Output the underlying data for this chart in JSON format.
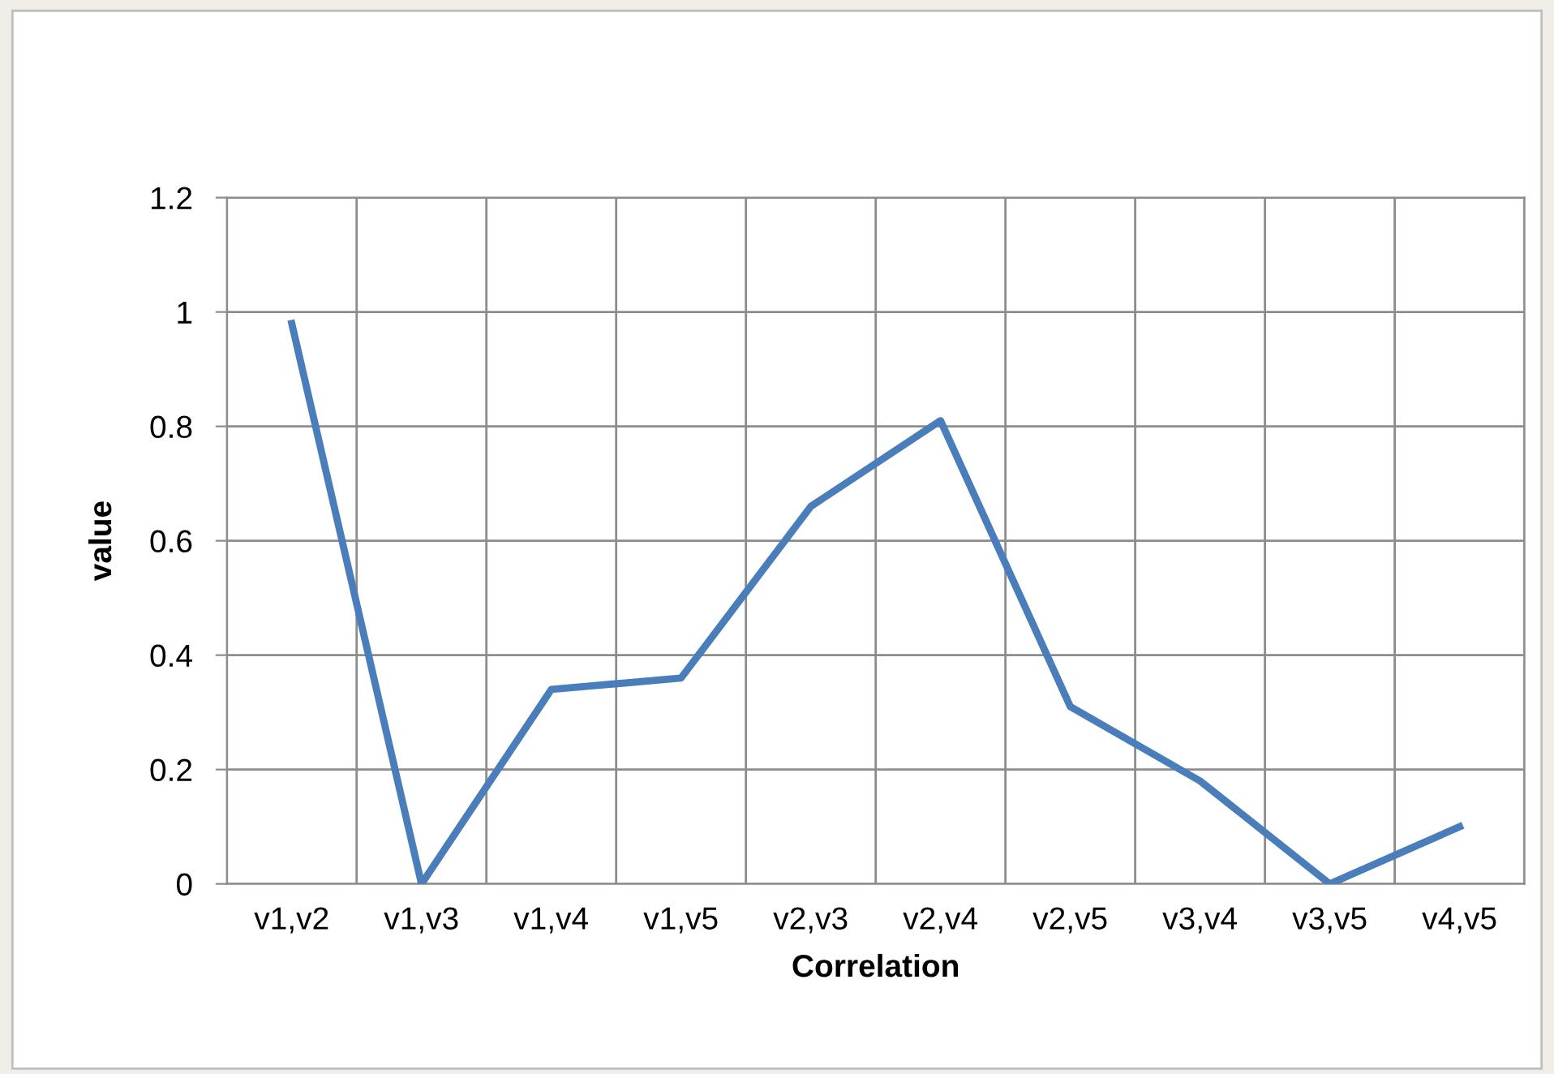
{
  "chart_data": {
    "type": "line",
    "xlabel": "Correlation",
    "ylabel": "value",
    "categories": [
      "v1,v2",
      "v1,v3",
      "v1,v4",
      "v1,v5",
      "v2,v3",
      "v2,v4",
      "v2,v5",
      "v3,v4",
      "v3,v5",
      "v4,v5"
    ],
    "series": [
      {
        "color": "#4a7ebb",
        "values": [
          0.98,
          0,
          0.34,
          0.36,
          0.66,
          0.81,
          0.31,
          0.18,
          0,
          0.1
        ]
      }
    ],
    "ylim": [
      0,
      1.2
    ],
    "yticks": [
      0,
      0.2,
      0.4,
      0.6,
      0.8,
      1,
      1.2
    ],
    "grid": true,
    "legend": false,
    "marker": "none",
    "line_style": "solid"
  }
}
